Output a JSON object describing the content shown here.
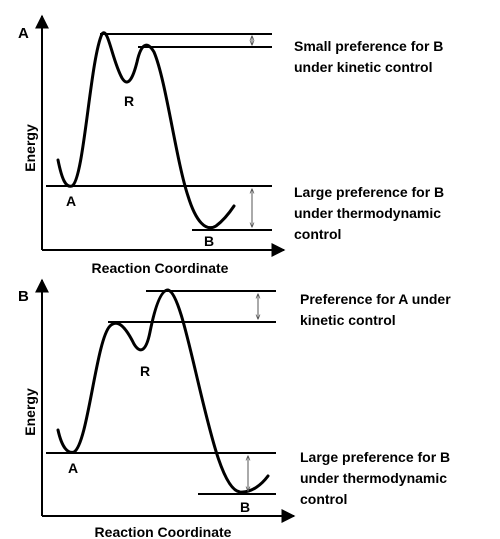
{
  "panels": [
    {
      "corner_label": "A",
      "y_axis_label": "Energy",
      "x_axis_label": "Reaction Coordinate",
      "point_labels": {
        "start": "A",
        "intermediate": "R",
        "product": "B"
      },
      "caption_kinetic": [
        "Small preference for B",
        "under kinetic control"
      ],
      "caption_thermo": [
        "Large preference for B",
        "under thermodynamic",
        "control"
      ]
    },
    {
      "corner_label": "B",
      "y_axis_label": "Energy",
      "x_axis_label": "Reaction Coordinate",
      "point_labels": {
        "start": "A",
        "intermediate": "R",
        "product": "B"
      },
      "caption_kinetic": [
        "Preference for A under",
        "kinetic control"
      ],
      "caption_thermo": [
        "Large preference for B",
        "under thermodynamic",
        "control"
      ]
    }
  ],
  "colors": {
    "ink": "#000000",
    "arrow": "#555555"
  }
}
